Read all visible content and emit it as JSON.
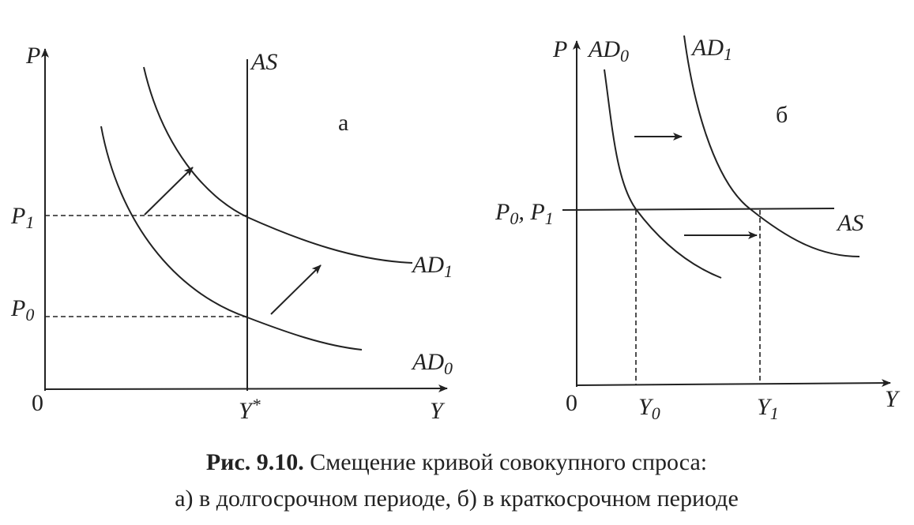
{
  "panel_a": {
    "labels": {
      "p_axis": [
        {
          "text": "P"
        }
      ],
      "as": [
        {
          "text": "AS"
        }
      ],
      "panel": [
        {
          "text": "а"
        }
      ],
      "p1": [
        {
          "text": "P"
        },
        {
          "text": "1",
          "sub": true
        }
      ],
      "p0": [
        {
          "text": "P"
        },
        {
          "text": "0",
          "sub": true
        }
      ],
      "ad1": [
        {
          "text": "AD"
        },
        {
          "text": "1",
          "sub": true
        }
      ],
      "ad0": [
        {
          "text": "AD"
        },
        {
          "text": "0",
          "sub": true
        }
      ],
      "origin": [
        {
          "text": "0"
        }
      ],
      "ystar": [
        {
          "text": "Y"
        },
        {
          "text": "*",
          "sup": true
        }
      ],
      "y_axis": [
        {
          "text": "Y"
        }
      ]
    }
  },
  "panel_b": {
    "labels": {
      "p_axis": [
        {
          "text": "P"
        }
      ],
      "ad0": [
        {
          "text": "AD"
        },
        {
          "text": "0",
          "sub": true
        }
      ],
      "ad1": [
        {
          "text": "AD"
        },
        {
          "text": "1",
          "sub": true
        }
      ],
      "panel": [
        {
          "text": "б"
        }
      ],
      "p0p1": [
        {
          "text": "P"
        },
        {
          "text": "0",
          "sub": true
        },
        {
          "text": ", P"
        },
        {
          "text": "1",
          "sub": true
        }
      ],
      "as": [
        {
          "text": "AS"
        }
      ],
      "origin": [
        {
          "text": "0"
        }
      ],
      "y0": [
        {
          "text": "Y"
        },
        {
          "text": "0",
          "sub": true
        }
      ],
      "y1": [
        {
          "text": "Y"
        },
        {
          "text": "1",
          "sub": true
        }
      ],
      "y_axis": [
        {
          "text": "Y"
        }
      ]
    }
  },
  "caption": {
    "figure": "Рис. 9.10.",
    "title": "Смещение кривой совокупного спроса:",
    "line2": "а) в долгосрочном периоде, б) в краткосрочном периоде"
  }
}
